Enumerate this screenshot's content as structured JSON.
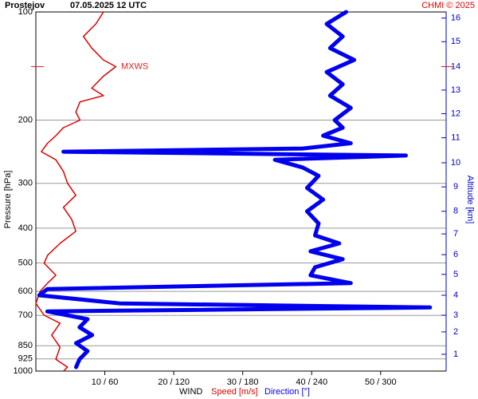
{
  "chart_data": {
    "type": "line",
    "title": "Prostejov",
    "subtitle": "07.05.2025 12 UTC",
    "credit": "CHMI © 2025",
    "ylabel": "Pressure [hPa]",
    "y2label": "Altitude [km]",
    "xlabel": "WIND",
    "ylim": [
      100,
      1000
    ],
    "ylog": true,
    "yticks": [
      100,
      200,
      300,
      400,
      500,
      600,
      700,
      850,
      925,
      1000
    ],
    "grid": true,
    "xlim": [
      0,
      59.5
    ],
    "x2lim": [
      0,
      357
    ],
    "xticks": [
      {
        "value": 10,
        "label": "10 / 60"
      },
      {
        "value": 20,
        "label": "20 / 120"
      },
      {
        "value": 30,
        "label": "30 / 180"
      },
      {
        "value": 40,
        "label": "40 / 240"
      },
      {
        "value": 50,
        "label": "50 / 300"
      }
    ],
    "y2ticks": [
      1,
      2,
      3,
      4,
      5,
      6,
      7,
      8,
      9,
      10,
      11,
      12,
      13,
      14,
      15,
      16
    ],
    "y2_pressure": [
      898,
      778,
      699,
      615,
      538,
      474,
      415,
      359,
      307,
      263,
      224,
      192,
      165,
      142,
      121,
      104
    ],
    "y2color": "#0000cc",
    "annotation": {
      "text": "MXWS",
      "pressure": 142,
      "color": "#dd2222"
    },
    "series": [
      {
        "name": "Speed [m/s]",
        "color": "#dd0000",
        "axis": "x",
        "pressure": [
          100,
          108,
          117,
          126,
          136,
          142,
          151,
          163,
          171,
          178,
          190,
          200,
          210,
          221,
          232,
          245,
          258,
          278,
          300,
          324,
          350,
          378,
          408,
          441,
          476,
          501,
          541,
          569,
          600,
          648,
          699,
          736,
          794,
          858,
          927,
          975,
          1000
        ],
        "values": [
          9.8,
          8.7,
          6.9,
          8.1,
          9.8,
          11.6,
          9.8,
          8.1,
          9.8,
          6.4,
          5.8,
          6.4,
          4,
          2.9,
          1.7,
          0.8,
          2.9,
          4,
          4.6,
          5.8,
          4,
          5.2,
          5.8,
          3.5,
          1.7,
          1.2,
          2.9,
          1.7,
          0.6,
          0,
          1.2,
          3.5,
          2.3,
          3.5,
          2.9,
          4.6,
          4
        ]
      },
      {
        "name": "Direction [°]",
        "color": "#0000ee",
        "axis": "x2",
        "pressure": [
          100,
          108,
          117,
          126,
          136,
          147,
          159,
          171,
          185,
          200,
          210,
          221,
          232,
          240,
          245,
          251,
          258,
          271,
          286,
          309,
          333,
          359,
          388,
          419,
          441,
          464,
          488,
          514,
          541,
          569,
          591,
          615,
          648,
          665,
          682,
          717,
          755,
          794,
          836,
          880,
          927,
          975
        ],
        "values": [
          270,
          253,
          267,
          256,
          277,
          253,
          267,
          256,
          274,
          260,
          267,
          250,
          274,
          232,
          24,
          322,
          208,
          232,
          246,
          236,
          250,
          236,
          246,
          243,
          264,
          239,
          267,
          243,
          239,
          274,
          10,
          3,
          73,
          343,
          10,
          45,
          38,
          49,
          35,
          45,
          38,
          35
        ]
      }
    ]
  }
}
